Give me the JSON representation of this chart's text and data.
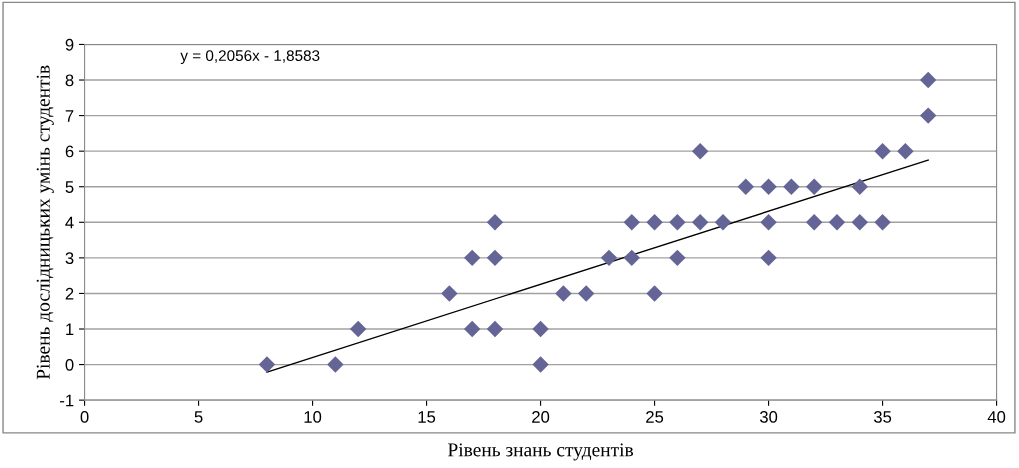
{
  "chart_data": {
    "type": "scatter",
    "xlabel": "Рівень знань студентів",
    "ylabel": "Рівень дослідницьких умінь студентів",
    "annotations": [
      "y = 0,2056x - 1,8583"
    ],
    "xlim": [
      0,
      40
    ],
    "xticks": [
      0,
      5,
      10,
      15,
      20,
      25,
      30,
      35,
      40
    ],
    "ylim": [
      -1,
      9
    ],
    "yticks": [
      -1,
      0,
      1,
      2,
      3,
      4,
      5,
      6,
      7,
      8,
      9
    ],
    "grid": "y",
    "legend": false,
    "series": [
      {
        "marker": "diamond",
        "color": "#646496",
        "x": [
          8,
          11,
          12,
          16,
          17,
          17,
          18,
          18,
          18,
          20,
          20,
          21,
          22,
          23,
          24,
          24,
          25,
          25,
          26,
          26,
          27,
          27,
          28,
          29,
          30,
          30,
          30,
          31,
          32,
          32,
          33,
          34,
          34,
          35,
          35,
          36,
          37,
          37
        ],
        "values": [
          0,
          0,
          1,
          2,
          3,
          1,
          4,
          3,
          1,
          1,
          0,
          2,
          2,
          3,
          4,
          3,
          4,
          2,
          4,
          3,
          6,
          4,
          4,
          5,
          5,
          4,
          3,
          5,
          5,
          4,
          4,
          5,
          4,
          6,
          4,
          6,
          8,
          7
        ]
      },
      {
        "type": "line",
        "marker": "none",
        "color": "#000000",
        "x": [
          8,
          37
        ],
        "values": [
          -0.21,
          5.75
        ]
      }
    ]
  }
}
